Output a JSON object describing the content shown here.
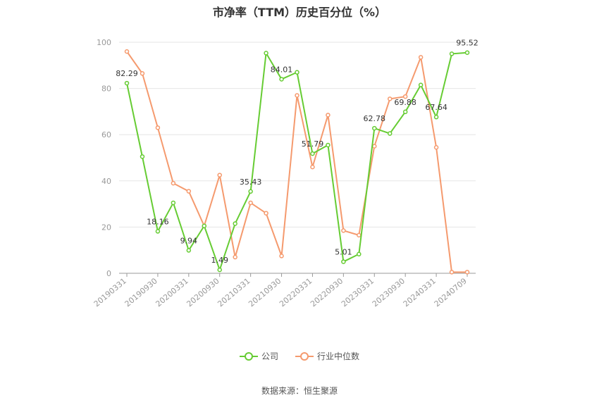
{
  "title": "市净率（TTM）历史百分位（%）",
  "source": "数据来源：恒生聚源",
  "colors": {
    "company": "#66cc33",
    "industry": "#f59a6e",
    "grid": "#e6e6e6",
    "axis": "#999999"
  },
  "chart_data": {
    "type": "line",
    "title": "市净率（TTM）历史百分位（%）",
    "ylim": [
      0,
      100
    ],
    "yticks": [
      0,
      20,
      40,
      60,
      80,
      100
    ],
    "grid": true,
    "legend_position": "bottom",
    "x_tick_labels": [
      "20190331",
      "20190930",
      "20200331",
      "20200930",
      "20210331",
      "20210930",
      "20220331",
      "20220930",
      "20230331",
      "20230930",
      "20240331",
      "20240709"
    ],
    "x": [
      "20190331",
      "20190630",
      "20190930",
      "20191231",
      "20200331",
      "20200630",
      "20200930",
      "20201231",
      "20210331",
      "20210630",
      "20210930",
      "20211231",
      "20220331",
      "20220630",
      "20220930",
      "20221231",
      "20230331",
      "20230630",
      "20230930",
      "20231231",
      "20240331",
      "20240630",
      "20240709"
    ],
    "series": [
      {
        "name": "公司",
        "values": [
          82.29,
          50.5,
          18.16,
          30.5,
          9.94,
          20.5,
          1.49,
          21.5,
          35.43,
          95.3,
          84.01,
          87.0,
          51.79,
          55.5,
          5.01,
          8.3,
          62.78,
          60.5,
          69.88,
          81.5,
          67.64,
          95.0,
          95.52
        ]
      },
      {
        "name": "行业中位数",
        "values": [
          96.0,
          86.5,
          63.0,
          39.0,
          35.5,
          20.5,
          42.5,
          7.0,
          30.5,
          26.0,
          7.5,
          77.0,
          46.0,
          68.5,
          18.5,
          16.5,
          55.0,
          75.5,
          76.5,
          93.5,
          54.5,
          0.5,
          0.5
        ]
      }
    ],
    "data_labels": [
      {
        "index": 0,
        "text": "82.29"
      },
      {
        "index": 2,
        "text": "18.16"
      },
      {
        "index": 4,
        "text": "9.94"
      },
      {
        "index": 6,
        "text": "1.49"
      },
      {
        "index": 8,
        "text": "35.43"
      },
      {
        "index": 10,
        "text": "84.01"
      },
      {
        "index": 12,
        "text": "51.79"
      },
      {
        "index": 14,
        "text": "5.01"
      },
      {
        "index": 16,
        "text": "62.78"
      },
      {
        "index": 18,
        "text": "69.88"
      },
      {
        "index": 20,
        "text": "67.64"
      },
      {
        "index": 22,
        "text": "95.52"
      }
    ]
  }
}
